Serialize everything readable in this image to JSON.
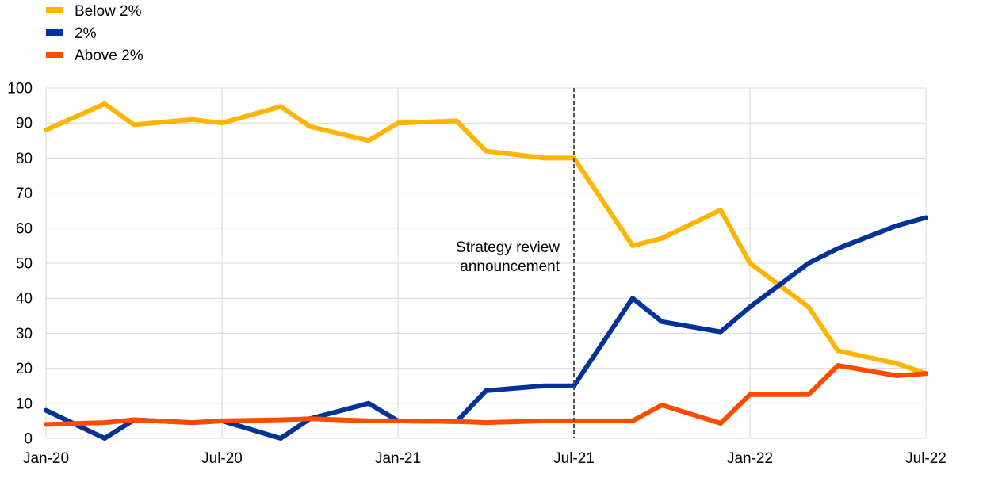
{
  "chart_data": {
    "type": "line",
    "title": "",
    "xlabel": "",
    "ylabel": "",
    "ylim": [
      0,
      100
    ],
    "yticks": [
      0,
      10,
      20,
      30,
      40,
      50,
      60,
      70,
      80,
      90,
      100
    ],
    "x_tick_labels": [
      "Jan-20",
      "Jul-20",
      "Jan-21",
      "Jul-21",
      "Jan-22",
      "Jul-22"
    ],
    "x_tick_months": [
      0,
      6,
      12,
      18,
      24,
      30
    ],
    "x_range_months": [
      0,
      30
    ],
    "grid": true,
    "legend_position": "top-left",
    "series": [
      {
        "name": "Below 2%",
        "color": "#FFB400",
        "points": [
          [
            "2020-01",
            88
          ],
          [
            "2020-03",
            95.5
          ],
          [
            "2020-04",
            89.5
          ],
          [
            "2020-06",
            91
          ],
          [
            "2020-07",
            90
          ],
          [
            "2020-09",
            94.7
          ],
          [
            "2020-10",
            89
          ],
          [
            "2020-12",
            85
          ],
          [
            "2021-01",
            90
          ],
          [
            "2021-03",
            90.6
          ],
          [
            "2021-04",
            82
          ],
          [
            "2021-06",
            80
          ],
          [
            "2021-07",
            80
          ],
          [
            "2021-09",
            55
          ],
          [
            "2021-10",
            57.1
          ],
          [
            "2021-12",
            65.2
          ],
          [
            "2022-01",
            50
          ],
          [
            "2022-03",
            37.5
          ],
          [
            "2022-04",
            25
          ],
          [
            "2022-06",
            21.4
          ],
          [
            "2022-07",
            18.5
          ]
        ]
      },
      {
        "name": "2%",
        "color": "#003299",
        "points": [
          [
            "2020-01",
            8
          ],
          [
            "2020-03",
            0
          ],
          [
            "2020-04",
            5.3
          ],
          [
            "2020-06",
            4.5
          ],
          [
            "2020-07",
            5
          ],
          [
            "2020-09",
            0
          ],
          [
            "2020-10",
            5.6
          ],
          [
            "2020-12",
            10
          ],
          [
            "2021-01",
            5
          ],
          [
            "2021-03",
            4.8
          ],
          [
            "2021-04",
            13.6
          ],
          [
            "2021-06",
            15
          ],
          [
            "2021-07",
            15
          ],
          [
            "2021-09",
            40
          ],
          [
            "2021-10",
            33.3
          ],
          [
            "2021-12",
            30.4
          ],
          [
            "2022-01",
            37.5
          ],
          [
            "2022-03",
            50
          ],
          [
            "2022-04",
            54.2
          ],
          [
            "2022-06",
            60.7
          ],
          [
            "2022-07",
            63
          ]
        ]
      },
      {
        "name": "Above 2%",
        "color": "#FF4B00",
        "points": [
          [
            "2020-01",
            4
          ],
          [
            "2020-03",
            4.5
          ],
          [
            "2020-04",
            5.3
          ],
          [
            "2020-06",
            4.5
          ],
          [
            "2020-07",
            5
          ],
          [
            "2020-09",
            5.3
          ],
          [
            "2020-10",
            5.6
          ],
          [
            "2020-12",
            5
          ],
          [
            "2021-01",
            5
          ],
          [
            "2021-03",
            4.8
          ],
          [
            "2021-04",
            4.5
          ],
          [
            "2021-06",
            5
          ],
          [
            "2021-07",
            5
          ],
          [
            "2021-09",
            5
          ],
          [
            "2021-10",
            9.5
          ],
          [
            "2021-12",
            4.3
          ],
          [
            "2022-01",
            12.5
          ],
          [
            "2022-03",
            12.5
          ],
          [
            "2022-04",
            20.8
          ],
          [
            "2022-06",
            17.9
          ],
          [
            "2022-07",
            18.5
          ]
        ]
      }
    ],
    "vline": {
      "x": "2021-07",
      "style": "dashed",
      "color": "#555555"
    },
    "annotation": {
      "x": "2021-07",
      "lines": [
        "Strategy review",
        "announcement"
      ]
    }
  }
}
